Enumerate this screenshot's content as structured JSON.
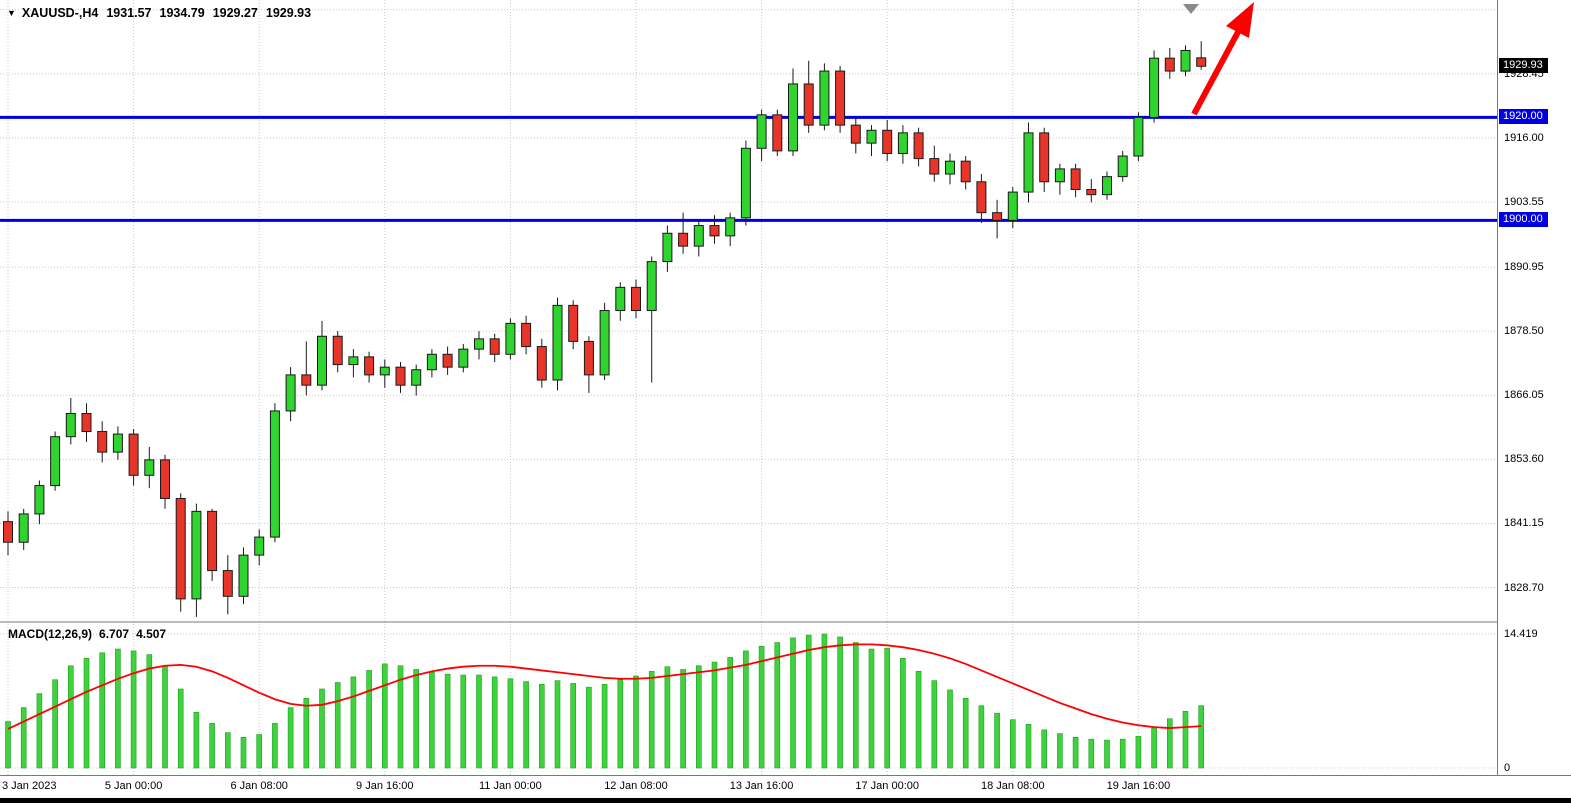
{
  "header": {
    "dropdown_icon": "▼",
    "symbol": "XAUUSD-,H4",
    "open": "1931.57",
    "high": "1934.79",
    "low": "1929.27",
    "close": "1929.93"
  },
  "indicator": {
    "name": "MACD(12,26,9)",
    "main_value": "6.707",
    "signal_value": "4.507"
  },
  "price_axis": {
    "current_tag": "1929.93",
    "ticks": [
      "1928.45",
      "1916.00",
      "1903.55",
      "1890.95",
      "1878.50",
      "1866.05",
      "1853.60",
      "1841.15",
      "1828.70"
    ],
    "macd_ticks": [
      "14.419",
      "0"
    ]
  },
  "colors": {
    "bull": "#2fd42f",
    "bear": "#e8352a",
    "outline": "#1a1a1a",
    "grid": "#c9c9c9",
    "level_line": "#0000e0",
    "signal": "#ff0000",
    "histogram": "#3fd23f",
    "histogram_edge": "#19a319",
    "arrow": "#ff0000",
    "current_tag_bg": "#000000",
    "shift_marker": "#8a8a8a"
  },
  "chart_data": [
    {
      "type": "candlestick",
      "title": "XAUUSD- H4",
      "symbol": "XAUUSD-",
      "timeframe": "H4",
      "ylim": [
        1822.4,
        1942.8
      ],
      "grid_prices": [
        1940.9,
        1928.45,
        1916.0,
        1903.55,
        1890.95,
        1878.5,
        1866.05,
        1853.6,
        1841.15,
        1828.7
      ],
      "hlines": [
        {
          "value": 1920.0,
          "label": "1920.00"
        },
        {
          "value": 1900.0,
          "label": "1900.00"
        }
      ],
      "current_price": 1929.93,
      "x_labels": [
        "3 Jan 2023",
        "5 Jan 00:00",
        "6 Jan 08:00",
        "9 Jan 16:00",
        "11 Jan 00:00",
        "12 Jan 08:00",
        "13 Jan 16:00",
        "17 Jan 00:00",
        "18 Jan 08:00",
        "19 Jan 16:00"
      ],
      "x_label_indices": [
        0,
        8,
        16,
        24,
        32,
        40,
        48,
        56,
        64,
        72
      ],
      "annotations": [
        {
          "type": "arrow",
          "direction": "up-right",
          "color": "#ff0000",
          "meaning": "bullish breakout above 1920.00"
        }
      ],
      "ohlc": [
        [
          1841.5,
          1843.5,
          1835.0,
          1837.5
        ],
        [
          1837.5,
          1844.0,
          1836.0,
          1843.0
        ],
        [
          1843.0,
          1849.5,
          1841.0,
          1848.5
        ],
        [
          1848.5,
          1859.0,
          1847.5,
          1858.0
        ],
        [
          1858.0,
          1865.5,
          1856.5,
          1862.5
        ],
        [
          1862.5,
          1864.5,
          1857.0,
          1859.0
        ],
        [
          1859.0,
          1861.0,
          1853.0,
          1855.0
        ],
        [
          1855.0,
          1860.0,
          1853.5,
          1858.5
        ],
        [
          1858.5,
          1859.5,
          1848.5,
          1850.5
        ],
        [
          1850.5,
          1856.0,
          1848.0,
          1853.5
        ],
        [
          1853.5,
          1854.5,
          1844.0,
          1846.0
        ],
        [
          1846.0,
          1847.0,
          1824.0,
          1826.5
        ],
        [
          1826.5,
          1845.0,
          1823.0,
          1843.5
        ],
        [
          1843.5,
          1844.0,
          1830.0,
          1832.0
        ],
        [
          1832.0,
          1835.0,
          1823.5,
          1827.0
        ],
        [
          1827.0,
          1836.5,
          1825.5,
          1835.0
        ],
        [
          1835.0,
          1840.0,
          1833.0,
          1838.5
        ],
        [
          1838.5,
          1864.5,
          1837.5,
          1863.0
        ],
        [
          1863.0,
          1871.5,
          1861.0,
          1870.0
        ],
        [
          1870.0,
          1876.5,
          1866.0,
          1868.0
        ],
        [
          1868.0,
          1880.5,
          1867.0,
          1877.5
        ],
        [
          1877.5,
          1878.5,
          1870.5,
          1872.0
        ],
        [
          1872.0,
          1875.0,
          1869.5,
          1873.5
        ],
        [
          1873.5,
          1874.5,
          1868.5,
          1870.0
        ],
        [
          1870.0,
          1873.0,
          1867.5,
          1871.5
        ],
        [
          1871.5,
          1872.5,
          1866.5,
          1868.0
        ],
        [
          1868.0,
          1872.0,
          1866.0,
          1871.0
        ],
        [
          1871.0,
          1875.0,
          1869.5,
          1874.0
        ],
        [
          1874.0,
          1875.5,
          1870.0,
          1871.5
        ],
        [
          1871.5,
          1876.0,
          1870.5,
          1875.0
        ],
        [
          1875.0,
          1878.5,
          1873.0,
          1877.0
        ],
        [
          1877.0,
          1878.0,
          1872.5,
          1874.0
        ],
        [
          1874.0,
          1881.0,
          1873.0,
          1880.0
        ],
        [
          1880.0,
          1881.5,
          1874.0,
          1875.5
        ],
        [
          1875.5,
          1877.0,
          1867.5,
          1869.0
        ],
        [
          1869.0,
          1885.0,
          1867.0,
          1883.5
        ],
        [
          1883.5,
          1884.5,
          1875.0,
          1876.5
        ],
        [
          1876.5,
          1877.5,
          1866.5,
          1870.0
        ],
        [
          1870.0,
          1884.0,
          1869.0,
          1882.5
        ],
        [
          1882.5,
          1888.0,
          1880.5,
          1887.0
        ],
        [
          1887.0,
          1888.5,
          1881.0,
          1882.5
        ],
        [
          1882.5,
          1893.0,
          1868.5,
          1892.0
        ],
        [
          1892.0,
          1899.0,
          1890.0,
          1897.5
        ],
        [
          1897.5,
          1901.5,
          1893.5,
          1895.0
        ],
        [
          1895.0,
          1900.0,
          1893.0,
          1899.0
        ],
        [
          1899.0,
          1901.0,
          1895.5,
          1897.0
        ],
        [
          1897.0,
          1901.5,
          1895.0,
          1900.5
        ],
        [
          1900.5,
          1915.5,
          1899.0,
          1914.0
        ],
        [
          1914.0,
          1921.5,
          1911.5,
          1920.5
        ],
        [
          1920.5,
          1921.5,
          1912.5,
          1913.5
        ],
        [
          1913.5,
          1929.5,
          1912.5,
          1926.5
        ],
        [
          1926.5,
          1931.0,
          1917.0,
          1918.5
        ],
        [
          1918.5,
          1930.5,
          1917.5,
          1929.0
        ],
        [
          1929.0,
          1930.0,
          1917.0,
          1918.5
        ],
        [
          1918.5,
          1920.0,
          1913.0,
          1915.0
        ],
        [
          1915.0,
          1918.5,
          1912.5,
          1917.5
        ],
        [
          1917.5,
          1919.5,
          1911.5,
          1913.0
        ],
        [
          1913.0,
          1918.5,
          1911.0,
          1917.0
        ],
        [
          1917.0,
          1918.0,
          1910.5,
          1912.0
        ],
        [
          1912.0,
          1914.5,
          1907.5,
          1909.0
        ],
        [
          1909.0,
          1913.0,
          1907.0,
          1911.5
        ],
        [
          1911.5,
          1912.5,
          1906.0,
          1907.5
        ],
        [
          1907.5,
          1909.0,
          1899.5,
          1901.5
        ],
        [
          1901.5,
          1904.0,
          1896.5,
          1900.0
        ],
        [
          1900.0,
          1906.5,
          1898.5,
          1905.5
        ],
        [
          1905.5,
          1919.0,
          1903.5,
          1917.0
        ],
        [
          1917.0,
          1918.0,
          1905.5,
          1907.5
        ],
        [
          1907.5,
          1911.0,
          1905.0,
          1910.0
        ],
        [
          1910.0,
          1911.0,
          1904.5,
          1906.0
        ],
        [
          1906.0,
          1908.0,
          1903.5,
          1905.0
        ],
        [
          1905.0,
          1909.5,
          1904.0,
          1908.5
        ],
        [
          1908.5,
          1913.5,
          1907.5,
          1912.5
        ],
        [
          1912.5,
          1921.0,
          1911.5,
          1920.0
        ],
        [
          1920.0,
          1933.0,
          1919.0,
          1931.5
        ],
        [
          1931.5,
          1933.5,
          1927.5,
          1929.0
        ],
        [
          1929.0,
          1934.0,
          1928.0,
          1933.0
        ],
        [
          1931.57,
          1934.79,
          1929.27,
          1929.93
        ]
      ]
    },
    {
      "type": "bar",
      "name": "MACD(12,26,9)",
      "params": [
        12,
        26,
        9
      ],
      "ylim": [
        0,
        14.419
      ],
      "y_ticks": [
        14.419,
        0
      ],
      "current_histogram": 6.707,
      "current_signal": 4.507,
      "histogram": [
        5.0,
        6.5,
        8.0,
        9.5,
        11.0,
        11.8,
        12.4,
        12.8,
        12.6,
        12.2,
        11.0,
        8.5,
        6.0,
        4.8,
        3.8,
        3.3,
        3.6,
        4.8,
        6.5,
        7.5,
        8.5,
        9.2,
        9.8,
        10.5,
        11.2,
        11.0,
        10.6,
        10.3,
        10.1,
        10.0,
        10.0,
        9.8,
        9.6,
        9.3,
        9.0,
        9.4,
        9.1,
        8.7,
        9.0,
        9.5,
        9.9,
        10.4,
        10.9,
        10.6,
        11.0,
        11.4,
        11.9,
        12.6,
        13.1,
        13.5,
        14.0,
        14.3,
        14.419,
        14.1,
        13.5,
        12.8,
        12.9,
        11.8,
        10.4,
        9.4,
        8.4,
        7.5,
        6.7,
        5.9,
        5.2,
        4.7,
        4.1,
        3.7,
        3.3,
        3.1,
        3.0,
        3.1,
        3.4,
        4.3,
        5.3,
        6.1,
        6.707
      ],
      "signal": [
        4.2,
        5.0,
        5.8,
        6.6,
        7.4,
        8.2,
        8.9,
        9.6,
        10.2,
        10.7,
        11.0,
        11.1,
        10.9,
        10.4,
        9.7,
        8.9,
        8.1,
        7.4,
        6.9,
        6.7,
        6.8,
        7.2,
        7.7,
        8.3,
        8.9,
        9.5,
        10.0,
        10.4,
        10.7,
        10.9,
        11.0,
        11.0,
        10.9,
        10.7,
        10.5,
        10.3,
        10.1,
        9.9,
        9.7,
        9.6,
        9.6,
        9.7,
        9.9,
        10.1,
        10.3,
        10.5,
        10.8,
        11.1,
        11.5,
        11.9,
        12.3,
        12.7,
        13.0,
        13.2,
        13.3,
        13.3,
        13.2,
        13.0,
        12.7,
        12.3,
        11.8,
        11.2,
        10.5,
        9.8,
        9.1,
        8.4,
        7.7,
        7.0,
        6.4,
        5.8,
        5.3,
        4.9,
        4.6,
        4.4,
        4.3,
        4.4,
        4.507
      ]
    }
  ]
}
